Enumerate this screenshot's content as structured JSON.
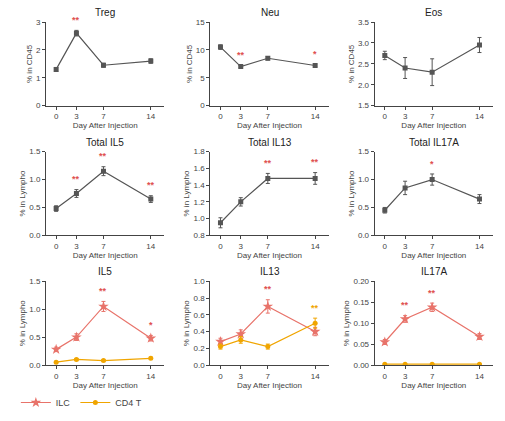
{
  "chart_data": [
    {
      "type": "line",
      "title": "Treg",
      "xlabel": "Day After Injection",
      "ylabel": "% in CD45",
      "x": [
        0,
        3,
        7,
        14
      ],
      "xlim": [
        -1.5,
        16
      ],
      "xticks": [
        0,
        3,
        7,
        14
      ],
      "ylim": [
        0,
        3.0
      ],
      "yticks": [
        0,
        1,
        2,
        3
      ],
      "grid": false,
      "series": [
        {
          "color": "#555555",
          "marker": "square",
          "values": [
            1.3,
            2.6,
            1.45,
            1.6
          ],
          "errors": [
            0.07,
            0.1,
            0.07,
            0.08
          ],
          "annotations": [
            null,
            {
              "text": "**",
              "color": "#e05050"
            },
            null,
            null
          ]
        }
      ]
    },
    {
      "type": "line",
      "title": "Neu",
      "xlabel": "Day After Injection",
      "ylabel": "% in CD45",
      "x": [
        0,
        3,
        7,
        14
      ],
      "xlim": [
        -1.5,
        16
      ],
      "xticks": [
        0,
        3,
        7,
        14
      ],
      "ylim": [
        0,
        15
      ],
      "yticks": [
        0,
        5,
        10,
        15
      ],
      "grid": false,
      "series": [
        {
          "color": "#555555",
          "marker": "square",
          "values": [
            10.5,
            7.0,
            8.5,
            7.2
          ],
          "errors": [
            0.4,
            0.2,
            0.3,
            0.2
          ],
          "annotations": [
            null,
            {
              "text": "**",
              "color": "#e05050"
            },
            null,
            {
              "text": "*",
              "color": "#e05050"
            }
          ]
        }
      ]
    },
    {
      "type": "line",
      "title": "Eos",
      "xlabel": "Day After Injection",
      "ylabel": "% in CD45",
      "x": [
        0,
        3,
        7,
        14
      ],
      "xlim": [
        -1.5,
        16
      ],
      "xticks": [
        0,
        3,
        7,
        14
      ],
      "ylim": [
        1.5,
        3.5
      ],
      "yticks": [
        1.5,
        {
          "value": 2.0,
          "label": "2.0"
        },
        2.5,
        {
          "value": 3.0,
          "label": "3.0"
        },
        3.5
      ],
      "grid": false,
      "series": [
        {
          "color": "#555555",
          "marker": "square",
          "values": [
            2.7,
            2.4,
            2.3,
            2.95
          ],
          "errors": [
            0.1,
            0.25,
            0.32,
            0.18
          ]
        }
      ]
    },
    {
      "type": "line",
      "title": "Total IL5",
      "xlabel": "Day After Injection",
      "ylabel": "% in Lympho",
      "x": [
        0,
        3,
        7,
        14
      ],
      "xlim": [
        -1.5,
        16
      ],
      "xticks": [
        0,
        3,
        7,
        14
      ],
      "ylim": [
        0,
        1.5
      ],
      "yticks": [
        {
          "value": 0,
          "label": "0.0"
        },
        0.5,
        {
          "value": 1.0,
          "label": "1.0"
        },
        1.5
      ],
      "grid": false,
      "series": [
        {
          "color": "#555555",
          "marker": "square",
          "values": [
            0.48,
            0.75,
            1.15,
            0.65
          ],
          "errors": [
            0.05,
            0.07,
            0.08,
            0.06
          ],
          "annotations": [
            null,
            {
              "text": "**",
              "color": "#e05050"
            },
            {
              "text": "**",
              "color": "#e05050"
            },
            {
              "text": "**",
              "color": "#e05050"
            }
          ]
        }
      ]
    },
    {
      "type": "line",
      "title": "Total IL13",
      "xlabel": "Day After Injection",
      "ylabel": "% in Lympho",
      "x": [
        0,
        3,
        7,
        14
      ],
      "xlim": [
        -1.5,
        16
      ],
      "xticks": [
        0,
        3,
        7,
        14
      ],
      "ylim": [
        0.8,
        1.8
      ],
      "yticks": [
        0.8,
        {
          "value": 1.0,
          "label": "1.0"
        },
        1.2,
        1.4,
        1.6,
        1.8
      ],
      "grid": false,
      "series": [
        {
          "color": "#555555",
          "marker": "square",
          "values": [
            0.95,
            1.2,
            1.48,
            1.48
          ],
          "errors": [
            0.06,
            0.05,
            0.06,
            0.07
          ],
          "annotations": [
            null,
            null,
            {
              "text": "**",
              "color": "#e05050"
            },
            {
              "text": "**",
              "color": "#e05050"
            }
          ]
        }
      ]
    },
    {
      "type": "line",
      "title": "Total IL17A",
      "xlabel": "Day After Injection",
      "ylabel": "% in Lympho",
      "x": [
        0,
        3,
        7,
        14
      ],
      "xlim": [
        -1.5,
        16
      ],
      "xticks": [
        0,
        3,
        7,
        14
      ],
      "ylim": [
        0,
        1.5
      ],
      "yticks": [
        {
          "value": 0,
          "label": "0.0"
        },
        0.5,
        {
          "value": 1.0,
          "label": "1.0"
        },
        1.5
      ],
      "grid": false,
      "series": [
        {
          "color": "#555555",
          "marker": "square",
          "values": [
            0.45,
            0.85,
            1.0,
            0.65
          ],
          "errors": [
            0.05,
            0.12,
            0.1,
            0.08
          ],
          "annotations": [
            null,
            null,
            {
              "text": "*",
              "color": "#e05050"
            },
            null
          ]
        }
      ]
    },
    {
      "type": "line",
      "title": "IL5",
      "xlabel": "Day After Injection",
      "ylabel": "% in Lympho",
      "x": [
        0,
        3,
        7,
        14
      ],
      "xlim": [
        -1.5,
        16
      ],
      "xticks": [
        0,
        3,
        7,
        14
      ],
      "ylim": [
        0,
        1.5
      ],
      "yticks": [
        {
          "value": 0,
          "label": "0.0"
        },
        0.5,
        {
          "value": 1.0,
          "label": "1.0"
        },
        1.5
      ],
      "grid": false,
      "legend": "lower left",
      "series": [
        {
          "name": "ILC",
          "color": "#e8736a",
          "marker": "star",
          "values": [
            0.28,
            0.5,
            1.05,
            0.48
          ],
          "errors": [
            0.04,
            0.06,
            0.09,
            0.05
          ],
          "annotations": [
            null,
            null,
            {
              "text": "**",
              "color": "#e05050"
            },
            {
              "text": "*",
              "color": "#e05050"
            }
          ]
        },
        {
          "name": "CD4 T",
          "color": "#f0a500",
          "marker": "circle",
          "values": [
            0.05,
            0.1,
            0.08,
            0.12
          ],
          "errors": [
            0.015,
            0.015,
            0.015,
            0.02
          ]
        }
      ]
    },
    {
      "type": "line",
      "title": "IL13",
      "xlabel": "Day After Injection",
      "ylabel": "% in Lympho",
      "x": [
        0,
        3,
        7,
        14
      ],
      "xlim": [
        -1.5,
        16
      ],
      "xticks": [
        0,
        3,
        7,
        14
      ],
      "ylim": [
        0,
        1.0
      ],
      "yticks": [
        {
          "value": 0,
          "label": "0.0"
        },
        0.2,
        0.4,
        0.6,
        0.8,
        {
          "value": 1.0,
          "label": "1.0"
        }
      ],
      "grid": false,
      "legend": "lower left",
      "series": [
        {
          "name": "ILC",
          "color": "#e8736a",
          "marker": "star",
          "values": [
            0.28,
            0.37,
            0.7,
            0.4
          ],
          "errors": [
            0.04,
            0.05,
            0.08,
            0.05
          ],
          "annotations": [
            null,
            null,
            {
              "text": "**",
              "color": "#e05050"
            },
            null
          ]
        },
        {
          "name": "CD4 T",
          "color": "#f0a500",
          "marker": "circle",
          "values": [
            0.22,
            0.3,
            0.22,
            0.5
          ],
          "errors": [
            0.03,
            0.04,
            0.03,
            0.06
          ],
          "annotations": [
            null,
            null,
            null,
            {
              "text": "**",
              "color": "#f0a500"
            }
          ]
        }
      ]
    },
    {
      "type": "line",
      "title": "IL17A",
      "xlabel": "Day After Injection",
      "ylabel": "% in Lympho",
      "x": [
        0,
        3,
        7,
        14
      ],
      "xlim": [
        -1.5,
        16
      ],
      "xticks": [
        0,
        3,
        7,
        14
      ],
      "ylim": [
        0.0,
        0.2
      ],
      "yticks": [
        {
          "value": 0,
          "label": "0.00"
        },
        0.05,
        {
          "value": 0.1,
          "label": "0.10"
        },
        0.15,
        {
          "value": 0.2,
          "label": "0.20"
        }
      ],
      "grid": false,
      "legend": "lower left",
      "series": [
        {
          "name": "ILC",
          "color": "#e8736a",
          "marker": "star",
          "values": [
            0.055,
            0.11,
            0.138,
            0.068
          ],
          "errors": [
            0.006,
            0.008,
            0.01,
            0.007
          ],
          "annotations": [
            null,
            {
              "text": "**",
              "color": "#e05050"
            },
            {
              "text": "**",
              "color": "#e05050"
            },
            null
          ]
        },
        {
          "name": "CD4 T",
          "color": "#f0a500",
          "marker": "circle",
          "values": [
            0.002,
            0.002,
            0.002,
            0.002
          ],
          "errors": [
            0.001,
            0.001,
            0.001,
            0.001
          ]
        }
      ]
    }
  ]
}
